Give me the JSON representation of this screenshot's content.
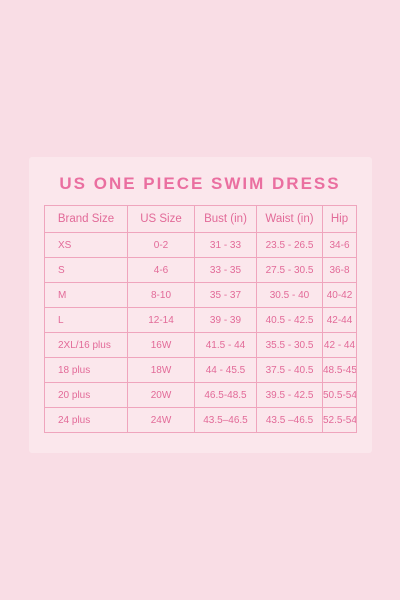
{
  "title": "US ONE PIECE SWIM DRESS",
  "table": {
    "headers": [
      "Brand Size",
      "US Size",
      "Bust (in)",
      "Waist (in)",
      "Hip"
    ],
    "rows": [
      [
        "XS",
        "0-2",
        "31 - 33",
        "23.5 - 26.5",
        "34-6"
      ],
      [
        "S",
        "4-6",
        "33 - 35",
        "27.5 - 30.5",
        "36-8"
      ],
      [
        "M",
        "8-10",
        "35 - 37",
        "30.5 - 40",
        "40-42"
      ],
      [
        "L",
        "12-14",
        "39 - 39",
        "40.5 - 42.5",
        "42-44"
      ],
      [
        "2XL/16 plus",
        "16W",
        "41.5 - 44",
        "35.5 - 30.5",
        "42 - 44"
      ],
      [
        "18 plus",
        "18W",
        "44 - 45.5",
        "37.5 - 40.5",
        "48.5-45"
      ],
      [
        "20 plus",
        "20W",
        "46.5-48.5",
        "39.5 - 42.5",
        "50.5-54"
      ],
      [
        "24 plus",
        "24W",
        "43.5–46.5",
        "43.5 –46.5",
        "52.5-54"
      ]
    ]
  },
  "colors": {
    "background": "#f9dde5",
    "card": "#fbe7ec",
    "accent": "#e26a98",
    "border": "#efa5bd"
  }
}
